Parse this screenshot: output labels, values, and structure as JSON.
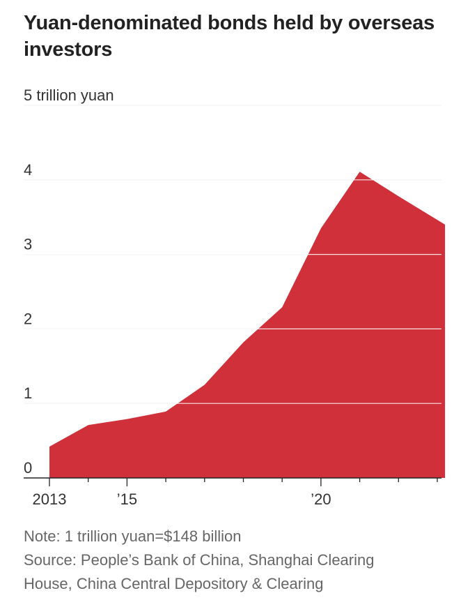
{
  "chart_data": {
    "type": "area",
    "title": "Yuan-denominated bonds held by overseas investors",
    "ylabel": "5 trillion yuan",
    "xlabel": "",
    "ylim": [
      0,
      5
    ],
    "xlim": [
      2013,
      2023.2
    ],
    "yticks": [
      {
        "value": 0,
        "label": "0"
      },
      {
        "value": 1,
        "label": "1"
      },
      {
        "value": 2,
        "label": "2"
      },
      {
        "value": 3,
        "label": "3"
      },
      {
        "value": 4,
        "label": "4"
      },
      {
        "value": 5,
        "label": "5 trillion yuan"
      }
    ],
    "xticks_labeled": [
      {
        "value": 2013,
        "label": "2013"
      },
      {
        "value": 2015,
        "label": "’15"
      },
      {
        "value": 2020,
        "label": "’20"
      }
    ],
    "xticks_minor": [
      2014,
      2016,
      2017,
      2018,
      2019,
      2021,
      2022,
      2023
    ],
    "grid": true,
    "color": "#d0303a",
    "x": [
      2013,
      2014,
      2015,
      2016,
      2017,
      2018,
      2019,
      2020,
      2021,
      2022,
      2023.2
    ],
    "values": [
      0.42,
      0.71,
      0.79,
      0.89,
      1.25,
      1.82,
      2.29,
      3.35,
      4.11,
      3.78,
      3.4
    ]
  },
  "notes": {
    "note": "Note: 1 trillion yuan=$148 billion",
    "source_line1": "Source: People’s Bank of China, Shanghai Clearing",
    "source_line2": "House, China Central Depository & Clearing"
  }
}
